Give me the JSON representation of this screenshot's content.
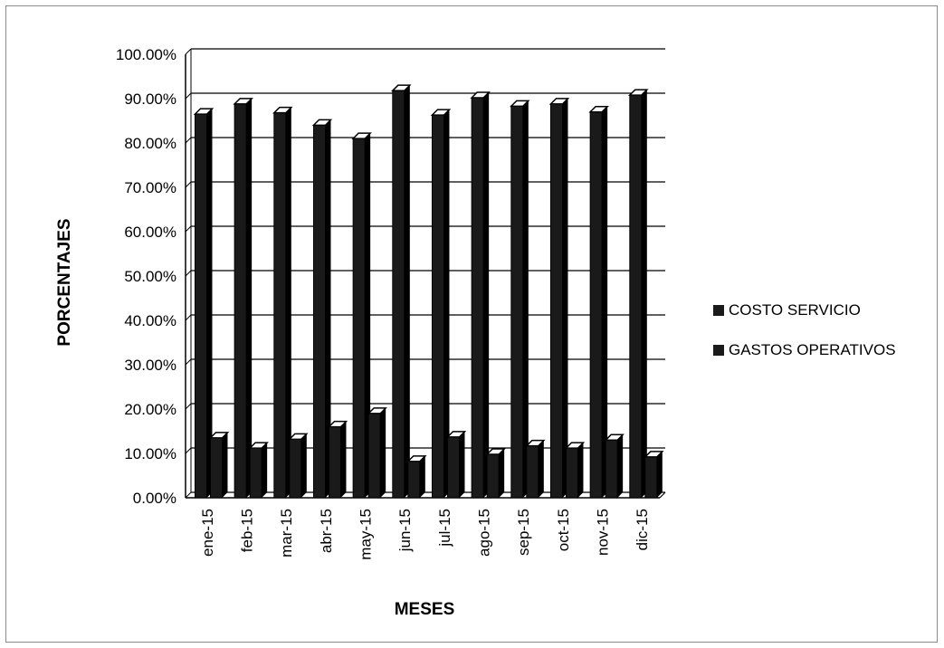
{
  "chart_data": {
    "type": "bar",
    "title": "",
    "xlabel": "MESES",
    "ylabel": "PORCENTAJES",
    "ylim": [
      0,
      100
    ],
    "ytick_step": 10,
    "ytick_format": "0.00%",
    "grid": true,
    "legend_position": "right",
    "categories": [
      "ene-15",
      "feb-15",
      "mar-15",
      "abr-15",
      "may-15",
      "jun-15",
      "jul-15",
      "ago-15",
      "sep-15",
      "oct-15",
      "nov-15",
      "dic-15"
    ],
    "series": [
      {
        "name": "COSTO SERVICIO",
        "color": "#1a1a1a",
        "values": [
          86.5,
          88.8,
          86.8,
          84.0,
          81.0,
          91.8,
          86.3,
          90.2,
          88.3,
          88.8,
          87.0,
          90.8
        ]
      },
      {
        "name": "GASTOS OPERATIVOS",
        "color": "#1a1a1a",
        "values": [
          13.5,
          11.2,
          13.2,
          16.0,
          19.0,
          8.2,
          13.7,
          9.8,
          11.7,
          11.2,
          13.0,
          9.2
        ]
      }
    ]
  }
}
